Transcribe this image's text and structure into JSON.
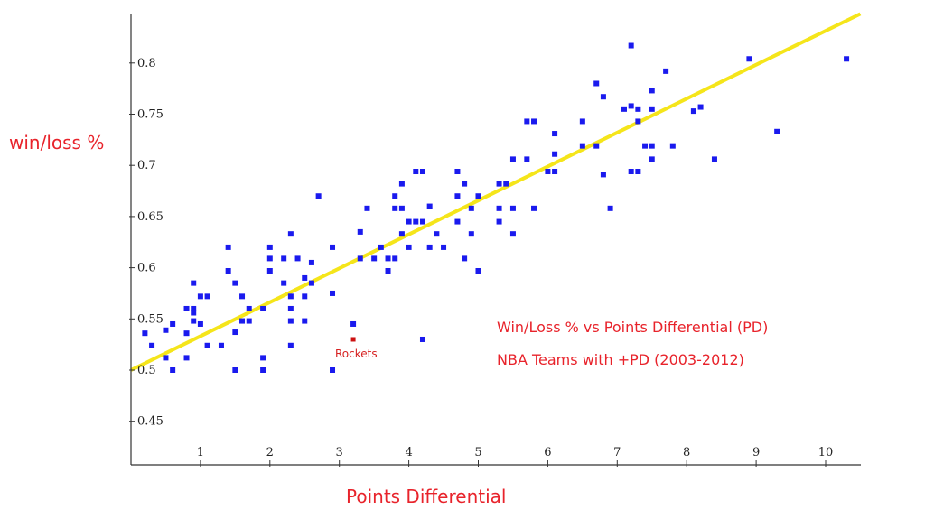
{
  "chart_data": {
    "type": "scatter",
    "title_lines": [
      "Win/Loss % vs Points Differential (PD)",
      "NBA Teams with +PD (2003-2012)"
    ],
    "xlabel": "Points Differential",
    "ylabel": "win/loss %",
    "xlim": [
      0,
      10.5
    ],
    "ylim": [
      0.415,
      0.85
    ],
    "xticks": [
      1,
      2,
      3,
      4,
      5,
      6,
      7,
      8,
      9,
      10
    ],
    "yticks": [
      0.45,
      0.5,
      0.55,
      0.6,
      0.65,
      0.7,
      0.75,
      0.8
    ],
    "xtick_labels": [
      "1",
      "2",
      "3",
      "4",
      "5",
      "6",
      "7",
      "8",
      "9",
      "10"
    ],
    "ytick_labels": [
      "0.45",
      "0.5",
      "0.55",
      "0.6",
      "0.65",
      "0.7",
      "0.75",
      "0.8"
    ],
    "grid": false,
    "colors": {
      "points": "#1a1aee",
      "highlight": "#cc1111",
      "trend": "#f5e51a",
      "text": "#e8232b"
    },
    "trendline": {
      "x": [
        0,
        10.5
      ],
      "y": [
        0.5,
        0.848
      ]
    },
    "highlight": {
      "label": "Rockets",
      "x": 3.2,
      "y": 0.53
    },
    "points": [
      [
        0.2,
        0.536
      ],
      [
        0.3,
        0.524
      ],
      [
        0.5,
        0.512
      ],
      [
        0.5,
        0.539
      ],
      [
        0.6,
        0.5
      ],
      [
        0.6,
        0.545
      ],
      [
        0.8,
        0.512
      ],
      [
        0.8,
        0.536
      ],
      [
        0.8,
        0.56
      ],
      [
        0.9,
        0.548
      ],
      [
        0.9,
        0.56
      ],
      [
        0.9,
        0.556
      ],
      [
        0.9,
        0.585
      ],
      [
        1.0,
        0.572
      ],
      [
        1.0,
        0.545
      ],
      [
        1.1,
        0.524
      ],
      [
        1.1,
        0.572
      ],
      [
        1.3,
        0.524
      ],
      [
        1.4,
        0.597
      ],
      [
        1.4,
        0.62
      ],
      [
        1.5,
        0.585
      ],
      [
        1.5,
        0.537
      ],
      [
        1.5,
        0.5
      ],
      [
        1.6,
        0.572
      ],
      [
        1.6,
        0.548
      ],
      [
        1.7,
        0.548
      ],
      [
        1.7,
        0.56
      ],
      [
        1.9,
        0.5
      ],
      [
        1.9,
        0.512
      ],
      [
        1.9,
        0.56
      ],
      [
        2.0,
        0.597
      ],
      [
        2.0,
        0.609
      ],
      [
        2.0,
        0.62
      ],
      [
        2.2,
        0.609
      ],
      [
        2.2,
        0.585
      ],
      [
        2.3,
        0.633
      ],
      [
        2.3,
        0.572
      ],
      [
        2.3,
        0.56
      ],
      [
        2.3,
        0.548
      ],
      [
        2.3,
        0.524
      ],
      [
        2.4,
        0.609
      ],
      [
        2.5,
        0.59
      ],
      [
        2.5,
        0.572
      ],
      [
        2.5,
        0.548
      ],
      [
        2.6,
        0.585
      ],
      [
        2.6,
        0.605
      ],
      [
        2.7,
        0.67
      ],
      [
        2.9,
        0.62
      ],
      [
        2.9,
        0.575
      ],
      [
        2.9,
        0.5
      ],
      [
        3.2,
        0.545
      ],
      [
        3.3,
        0.609
      ],
      [
        3.3,
        0.635
      ],
      [
        3.4,
        0.658
      ],
      [
        3.5,
        0.609
      ],
      [
        3.6,
        0.62
      ],
      [
        3.7,
        0.597
      ],
      [
        3.7,
        0.609
      ],
      [
        3.8,
        0.67
      ],
      [
        3.8,
        0.658
      ],
      [
        3.8,
        0.609
      ],
      [
        3.9,
        0.682
      ],
      [
        3.9,
        0.658
      ],
      [
        3.9,
        0.633
      ],
      [
        4.0,
        0.645
      ],
      [
        4.0,
        0.62
      ],
      [
        4.1,
        0.645
      ],
      [
        4.1,
        0.694
      ],
      [
        4.2,
        0.694
      ],
      [
        4.2,
        0.645
      ],
      [
        4.2,
        0.53
      ],
      [
        4.3,
        0.66
      ],
      [
        4.3,
        0.62
      ],
      [
        4.4,
        0.633
      ],
      [
        4.5,
        0.62
      ],
      [
        4.7,
        0.694
      ],
      [
        4.7,
        0.67
      ],
      [
        4.7,
        0.645
      ],
      [
        4.8,
        0.682
      ],
      [
        4.8,
        0.609
      ],
      [
        4.9,
        0.658
      ],
      [
        4.9,
        0.633
      ],
      [
        5.0,
        0.67
      ],
      [
        5.0,
        0.597
      ],
      [
        5.3,
        0.682
      ],
      [
        5.3,
        0.658
      ],
      [
        5.3,
        0.645
      ],
      [
        5.4,
        0.682
      ],
      [
        5.5,
        0.706
      ],
      [
        5.5,
        0.658
      ],
      [
        5.5,
        0.633
      ],
      [
        5.7,
        0.743
      ],
      [
        5.7,
        0.706
      ],
      [
        5.8,
        0.743
      ],
      [
        5.8,
        0.658
      ],
      [
        6.0,
        0.694
      ],
      [
        6.1,
        0.731
      ],
      [
        6.1,
        0.711
      ],
      [
        6.1,
        0.694
      ],
      [
        6.5,
        0.743
      ],
      [
        6.5,
        0.719
      ],
      [
        6.7,
        0.78
      ],
      [
        6.7,
        0.719
      ],
      [
        6.8,
        0.767
      ],
      [
        6.8,
        0.691
      ],
      [
        6.9,
        0.658
      ],
      [
        7.1,
        0.755
      ],
      [
        7.2,
        0.817
      ],
      [
        7.2,
        0.758
      ],
      [
        7.2,
        0.694
      ],
      [
        7.3,
        0.755
      ],
      [
        7.3,
        0.743
      ],
      [
        7.3,
        0.694
      ],
      [
        7.4,
        0.719
      ],
      [
        7.5,
        0.773
      ],
      [
        7.5,
        0.755
      ],
      [
        7.5,
        0.719
      ],
      [
        7.5,
        0.706
      ],
      [
        7.7,
        0.792
      ],
      [
        7.8,
        0.719
      ],
      [
        8.1,
        0.753
      ],
      [
        8.2,
        0.757
      ],
      [
        8.4,
        0.706
      ],
      [
        8.9,
        0.804
      ],
      [
        9.3,
        0.733
      ],
      [
        10.3,
        0.804
      ]
    ]
  }
}
